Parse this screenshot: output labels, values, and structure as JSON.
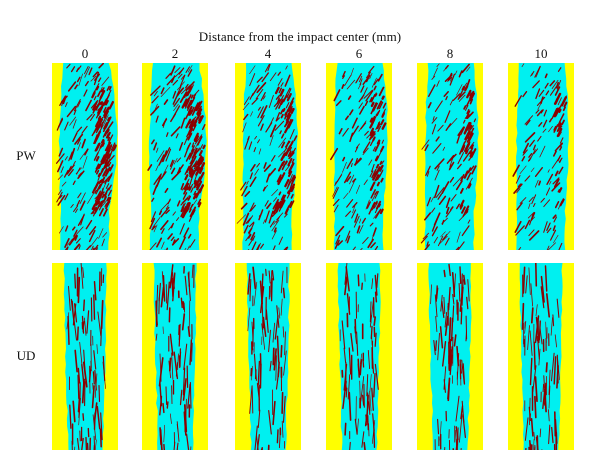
{
  "figure": {
    "title": "Distance from the impact center (mm)",
    "distances": [
      "0",
      "2",
      "4",
      "6",
      "8",
      "10"
    ],
    "rows": [
      {
        "label": "PW",
        "damage_level": [
          1.0,
          0.85,
          0.6,
          0.45,
          0.35,
          0.25
        ]
      },
      {
        "label": "UD",
        "damage_level": [
          0.2,
          0.22,
          0.18,
          0.2,
          0.25,
          0.28
        ]
      }
    ],
    "colors": {
      "background": "#ffff00",
      "fiber": "#00f0f0",
      "damage": "#8b0000"
    }
  }
}
